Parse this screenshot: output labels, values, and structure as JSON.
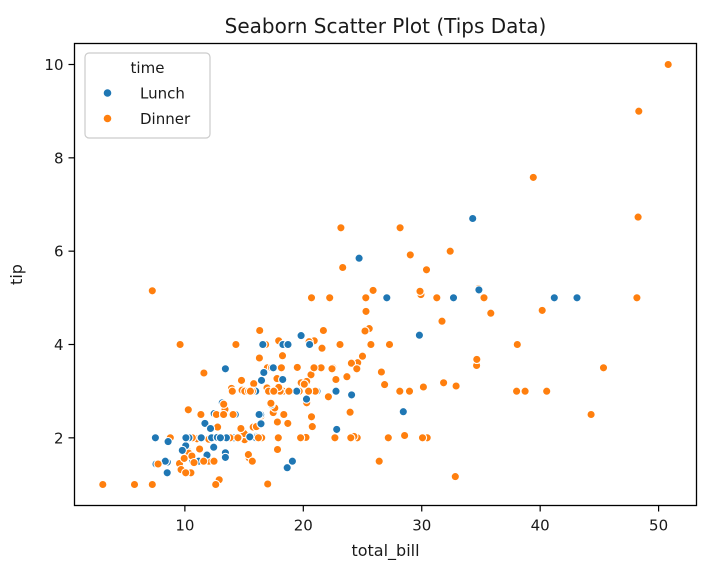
{
  "chart_data": {
    "type": "scatter",
    "title": "Seaborn Scatter Plot (Tips Data)",
    "xlabel": "total_bill",
    "ylabel": "tip",
    "xlim": [
      0.68,
      53.2
    ],
    "ylim": [
      0.55,
      10.45
    ],
    "xticks": [
      10,
      20,
      30,
      40,
      50
    ],
    "yticks": [
      2,
      4,
      6,
      8,
      10
    ],
    "grid": false,
    "legend": {
      "title": "time",
      "position": "upper left",
      "entries": [
        {
          "label": "Lunch",
          "color": "#1f77b4"
        },
        {
          "label": "Dinner",
          "color": "#ff7f0e"
        }
      ]
    },
    "marker": {
      "shape": "circle",
      "edge_color": "#ffffff"
    },
    "series": [
      {
        "name": "Lunch",
        "color": "#1f77b4"
      },
      {
        "name": "Dinner",
        "color": "#ff7f0e"
      }
    ],
    "points_format": [
      "total_bill",
      "tip",
      "series_index"
    ],
    "points": [
      [
        16.99,
        1.01,
        1
      ],
      [
        10.34,
        1.66,
        1
      ],
      [
        21.01,
        3.5,
        1
      ],
      [
        23.68,
        3.31,
        1
      ],
      [
        24.59,
        3.61,
        1
      ],
      [
        25.29,
        4.71,
        1
      ],
      [
        8.77,
        2.0,
        1
      ],
      [
        26.88,
        3.12,
        1
      ],
      [
        15.04,
        1.96,
        1
      ],
      [
        14.78,
        3.23,
        1
      ],
      [
        10.27,
        1.71,
        1
      ],
      [
        35.26,
        5.0,
        1
      ],
      [
        15.42,
        1.57,
        1
      ],
      [
        18.43,
        3.0,
        1
      ],
      [
        14.83,
        3.02,
        1
      ],
      [
        21.58,
        3.92,
        1
      ],
      [
        10.33,
        1.67,
        1
      ],
      [
        16.29,
        3.71,
        1
      ],
      [
        16.97,
        3.5,
        1
      ],
      [
        20.65,
        3.35,
        1
      ],
      [
        17.92,
        4.08,
        1
      ],
      [
        20.29,
        2.75,
        1
      ],
      [
        15.77,
        2.23,
        1
      ],
      [
        39.42,
        7.58,
        1
      ],
      [
        19.82,
        3.18,
        1
      ],
      [
        17.81,
        2.34,
        1
      ],
      [
        13.37,
        2.0,
        1
      ],
      [
        12.69,
        2.0,
        1
      ],
      [
        21.7,
        4.3,
        1
      ],
      [
        19.65,
        3.0,
        1
      ],
      [
        9.55,
        1.45,
        1
      ],
      [
        18.35,
        2.5,
        1
      ],
      [
        15.06,
        3.0,
        1
      ],
      [
        20.69,
        2.45,
        1
      ],
      [
        17.78,
        3.27,
        1
      ],
      [
        24.06,
        3.6,
        1
      ],
      [
        16.31,
        2.0,
        1
      ],
      [
        16.93,
        3.07,
        1
      ],
      [
        18.69,
        2.31,
        1
      ],
      [
        31.27,
        5.0,
        1
      ],
      [
        16.04,
        2.24,
        1
      ],
      [
        17.46,
        2.54,
        1
      ],
      [
        13.94,
        3.06,
        1
      ],
      [
        9.68,
        1.32,
        1
      ],
      [
        30.4,
        5.6,
        1
      ],
      [
        18.29,
        3.0,
        1
      ],
      [
        22.23,
        5.0,
        1
      ],
      [
        32.4,
        6.0,
        1
      ],
      [
        28.55,
        2.05,
        1
      ],
      [
        18.04,
        3.0,
        1
      ],
      [
        12.54,
        2.5,
        1
      ],
      [
        10.29,
        2.6,
        1
      ],
      [
        34.81,
        5.2,
        1
      ],
      [
        9.94,
        1.56,
        1
      ],
      [
        25.56,
        4.34,
        1
      ],
      [
        19.49,
        3.51,
        1
      ],
      [
        38.01,
        3.0,
        1
      ],
      [
        26.41,
        1.5,
        1
      ],
      [
        11.24,
        1.76,
        1
      ],
      [
        48.27,
        6.73,
        1
      ],
      [
        20.29,
        3.21,
        1
      ],
      [
        13.81,
        2.0,
        1
      ],
      [
        11.02,
        1.98,
        1
      ],
      [
        18.29,
        3.76,
        1
      ],
      [
        17.59,
        2.64,
        1
      ],
      [
        20.08,
        3.15,
        1
      ],
      [
        16.45,
        2.47,
        1
      ],
      [
        3.07,
        1.0,
        1
      ],
      [
        20.23,
        2.01,
        1
      ],
      [
        15.01,
        2.09,
        1
      ],
      [
        12.02,
        1.97,
        1
      ],
      [
        17.07,
        3.0,
        1
      ],
      [
        26.86,
        3.14,
        1
      ],
      [
        25.28,
        5.0,
        1
      ],
      [
        14.73,
        2.2,
        1
      ],
      [
        10.51,
        1.25,
        1
      ],
      [
        17.92,
        3.08,
        1
      ],
      [
        27.2,
        4.0,
        0
      ],
      [
        22.76,
        3.0,
        0
      ],
      [
        17.29,
        2.71,
        0
      ],
      [
        19.44,
        3.0,
        0
      ],
      [
        16.66,
        3.4,
        0
      ],
      [
        10.07,
        1.83,
        0
      ],
      [
        32.68,
        5.0,
        0
      ],
      [
        15.98,
        2.03,
        0
      ],
      [
        34.83,
        5.17,
        0
      ],
      [
        13.03,
        2.0,
        0
      ],
      [
        18.28,
        4.0,
        0
      ],
      [
        24.71,
        5.85,
        0
      ],
      [
        21.16,
        3.0,
        0
      ],
      [
        28.97,
        3.0,
        1
      ],
      [
        22.49,
        3.5,
        1
      ],
      [
        5.75,
        1.0,
        1
      ],
      [
        16.32,
        4.3,
        1
      ],
      [
        22.75,
        3.25,
        1
      ],
      [
        40.17,
        4.73,
        1
      ],
      [
        27.28,
        4.0,
        1
      ],
      [
        12.03,
        1.5,
        1
      ],
      [
        21.01,
        3.0,
        1
      ],
      [
        12.46,
        1.5,
        1
      ],
      [
        11.35,
        2.5,
        1
      ],
      [
        15.38,
        3.0,
        1
      ],
      [
        44.3,
        2.5,
        1
      ],
      [
        22.42,
        3.48,
        1
      ],
      [
        20.92,
        4.08,
        1
      ],
      [
        15.36,
        1.64,
        1
      ],
      [
        20.49,
        4.06,
        1
      ],
      [
        25.21,
        4.29,
        1
      ],
      [
        18.24,
        3.76,
        1
      ],
      [
        14.31,
        4.0,
        1
      ],
      [
        14.0,
        3.0,
        1
      ],
      [
        7.25,
        1.0,
        1
      ],
      [
        38.07,
        4.0,
        1
      ],
      [
        23.95,
        2.55,
        1
      ],
      [
        25.71,
        4.0,
        1
      ],
      [
        17.31,
        3.5,
        1
      ],
      [
        29.93,
        5.07,
        1
      ],
      [
        10.65,
        1.5,
        0
      ],
      [
        12.43,
        1.8,
        0
      ],
      [
        24.08,
        2.92,
        0
      ],
      [
        11.69,
        2.31,
        0
      ],
      [
        13.42,
        1.68,
        0
      ],
      [
        14.26,
        2.5,
        0
      ],
      [
        15.95,
        2.0,
        0
      ],
      [
        12.48,
        2.52,
        0
      ],
      [
        29.8,
        4.2,
        0
      ],
      [
        8.52,
        1.48,
        0
      ],
      [
        14.52,
        2.0,
        0
      ],
      [
        11.38,
        2.0,
        0
      ],
      [
        22.82,
        2.18,
        0
      ],
      [
        19.08,
        1.5,
        0
      ],
      [
        20.27,
        2.83,
        0
      ],
      [
        11.17,
        1.5,
        0
      ],
      [
        12.26,
        2.0,
        0
      ],
      [
        18.26,
        3.25,
        0
      ],
      [
        8.51,
        1.25,
        0
      ],
      [
        10.33,
        2.0,
        0
      ],
      [
        14.15,
        2.0,
        0
      ],
      [
        16.0,
        2.0,
        0
      ],
      [
        13.16,
        2.75,
        0
      ],
      [
        17.47,
        3.5,
        0
      ],
      [
        34.3,
        6.7,
        0
      ],
      [
        41.19,
        5.0,
        0
      ],
      [
        27.05,
        5.0,
        0
      ],
      [
        16.43,
        2.3,
        0
      ],
      [
        8.35,
        1.5,
        0
      ],
      [
        18.64,
        1.36,
        0
      ],
      [
        11.87,
        1.63,
        0
      ],
      [
        9.78,
        1.73,
        0
      ],
      [
        7.51,
        2.0,
        0
      ],
      [
        14.07,
        2.5,
        1
      ],
      [
        13.13,
        2.0,
        1
      ],
      [
        17.26,
        2.74,
        1
      ],
      [
        24.55,
        2.0,
        1
      ],
      [
        19.77,
        2.0,
        1
      ],
      [
        29.85,
        5.14,
        1
      ],
      [
        48.17,
        5.0,
        1
      ],
      [
        25.0,
        3.75,
        1
      ],
      [
        13.39,
        2.61,
        1
      ],
      [
        16.49,
        2.0,
        1
      ],
      [
        21.5,
        3.5,
        1
      ],
      [
        12.66,
        2.5,
        1
      ],
      [
        16.21,
        2.0,
        1
      ],
      [
        13.81,
        2.0,
        1
      ],
      [
        17.51,
        3.0,
        1
      ],
      [
        24.52,
        3.48,
        1
      ],
      [
        20.76,
        2.24,
        1
      ],
      [
        31.71,
        4.5,
        1
      ],
      [
        10.59,
        1.61,
        1
      ],
      [
        10.63,
        2.0,
        1
      ],
      [
        50.81,
        10.0,
        1
      ],
      [
        15.81,
        3.16,
        1
      ],
      [
        7.25,
        5.15,
        1
      ],
      [
        31.85,
        3.18,
        1
      ],
      [
        16.82,
        4.0,
        1
      ],
      [
        32.9,
        3.11,
        1
      ],
      [
        17.89,
        2.0,
        1
      ],
      [
        14.48,
        2.0,
        1
      ],
      [
        9.6,
        4.0,
        1
      ],
      [
        34.63,
        3.55,
        1
      ],
      [
        34.65,
        3.68,
        1
      ],
      [
        23.33,
        5.65,
        1
      ],
      [
        45.35,
        3.5,
        1
      ],
      [
        23.17,
        6.5,
        1
      ],
      [
        40.55,
        3.0,
        1
      ],
      [
        20.69,
        5.0,
        1
      ],
      [
        20.9,
        3.5,
        1
      ],
      [
        30.46,
        2.0,
        1
      ],
      [
        18.15,
        3.5,
        1
      ],
      [
        23.1,
        4.0,
        1
      ],
      [
        15.69,
        1.5,
        1
      ],
      [
        19.81,
        4.19,
        0
      ],
      [
        28.44,
        2.56,
        0
      ],
      [
        15.48,
        2.02,
        0
      ],
      [
        16.58,
        4.0,
        0
      ],
      [
        7.56,
        1.44,
        0
      ],
      [
        10.34,
        2.0,
        0
      ],
      [
        43.11,
        5.0,
        0
      ],
      [
        13.0,
        2.0,
        0
      ],
      [
        13.51,
        2.0,
        0
      ],
      [
        18.71,
        4.0,
        0
      ],
      [
        12.74,
        2.01,
        0
      ],
      [
        13.0,
        2.0,
        0
      ],
      [
        16.4,
        2.5,
        0
      ],
      [
        20.53,
        4.0,
        0
      ],
      [
        16.47,
        3.23,
        0
      ],
      [
        26.59,
        3.41,
        1
      ],
      [
        38.73,
        3.0,
        1
      ],
      [
        24.27,
        2.03,
        1
      ],
      [
        12.76,
        2.23,
        1
      ],
      [
        30.06,
        2.0,
        1
      ],
      [
        25.89,
        5.16,
        1
      ],
      [
        48.33,
        9.0,
        1
      ],
      [
        13.27,
        2.5,
        1
      ],
      [
        28.17,
        6.5,
        1
      ],
      [
        12.9,
        1.1,
        1
      ],
      [
        28.15,
        3.0,
        1
      ],
      [
        11.59,
        1.5,
        1
      ],
      [
        7.74,
        1.44,
        1
      ],
      [
        30.14,
        3.09,
        1
      ],
      [
        12.16,
        2.2,
        0
      ],
      [
        13.42,
        3.48,
        0
      ],
      [
        8.58,
        1.92,
        0
      ],
      [
        15.98,
        3.0,
        0
      ],
      [
        13.42,
        1.58,
        0
      ],
      [
        16.27,
        2.5,
        0
      ],
      [
        10.09,
        2.0,
        0
      ],
      [
        20.45,
        3.0,
        1
      ],
      [
        13.28,
        2.72,
        1
      ],
      [
        22.12,
        2.88,
        1
      ],
      [
        24.01,
        2.0,
        1
      ],
      [
        15.69,
        3.0,
        1
      ],
      [
        11.61,
        3.39,
        1
      ],
      [
        10.77,
        1.47,
        1
      ],
      [
        15.53,
        3.0,
        1
      ],
      [
        10.07,
        1.25,
        1
      ],
      [
        12.6,
        1.0,
        1
      ],
      [
        32.83,
        1.17,
        1
      ],
      [
        35.83,
        4.67,
        1
      ],
      [
        29.03,
        5.92,
        1
      ],
      [
        27.18,
        2.0,
        1
      ],
      [
        22.67,
        2.0,
        1
      ],
      [
        17.82,
        1.75,
        1
      ],
      [
        18.78,
        3.0,
        1
      ]
    ]
  }
}
